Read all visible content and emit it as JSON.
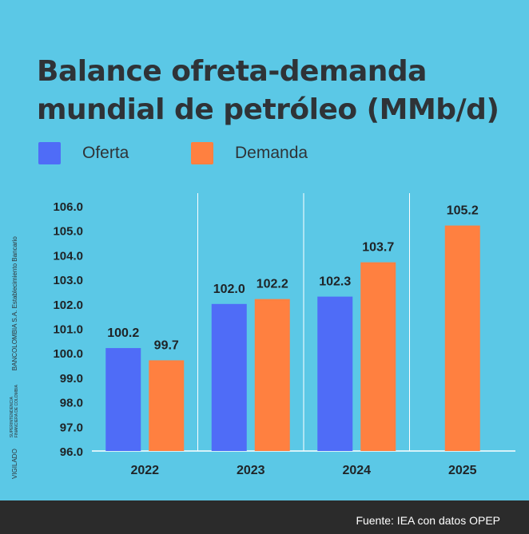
{
  "title": "Balance ofreta-demanda mundial de petróleo (MMb/d)",
  "legend": [
    {
      "label": "Oferta",
      "color": "#4f6cf7"
    },
    {
      "label": "Demanda",
      "color": "#ff8040"
    }
  ],
  "side_text": {
    "vigilado": "VIGILADO",
    "superintendencia": "SUPERINTENDENCIA FINANCIERA DE COLOMBIA",
    "bank": "BANCOLOMBIA S.A. Establecimiento Bancario"
  },
  "source": "Fuente: IEA con datos OPEP",
  "chart_data": {
    "type": "bar",
    "categories": [
      "2022",
      "2023",
      "2024",
      "2025"
    ],
    "series": [
      {
        "name": "Oferta",
        "color": "#4f6cf7",
        "values": [
          100.2,
          102.0,
          102.3,
          null
        ]
      },
      {
        "name": "Demanda",
        "color": "#ff8040",
        "values": [
          99.7,
          102.2,
          103.7,
          105.2
        ]
      }
    ],
    "value_labels": [
      [
        "100.2",
        "102.0",
        "102.3",
        null
      ],
      [
        "99.7",
        "102.2",
        "103.7",
        "105.2"
      ]
    ],
    "yticks": [
      "96.0",
      "97.0",
      "98.0",
      "99.0",
      "100.0",
      "101.0",
      "102.0",
      "103.0",
      "104.0",
      "105.0",
      "106.0"
    ],
    "ylim": [
      96,
      106
    ],
    "xlabel": "",
    "ylabel": "",
    "grid": false,
    "legend_position": "top-left"
  }
}
